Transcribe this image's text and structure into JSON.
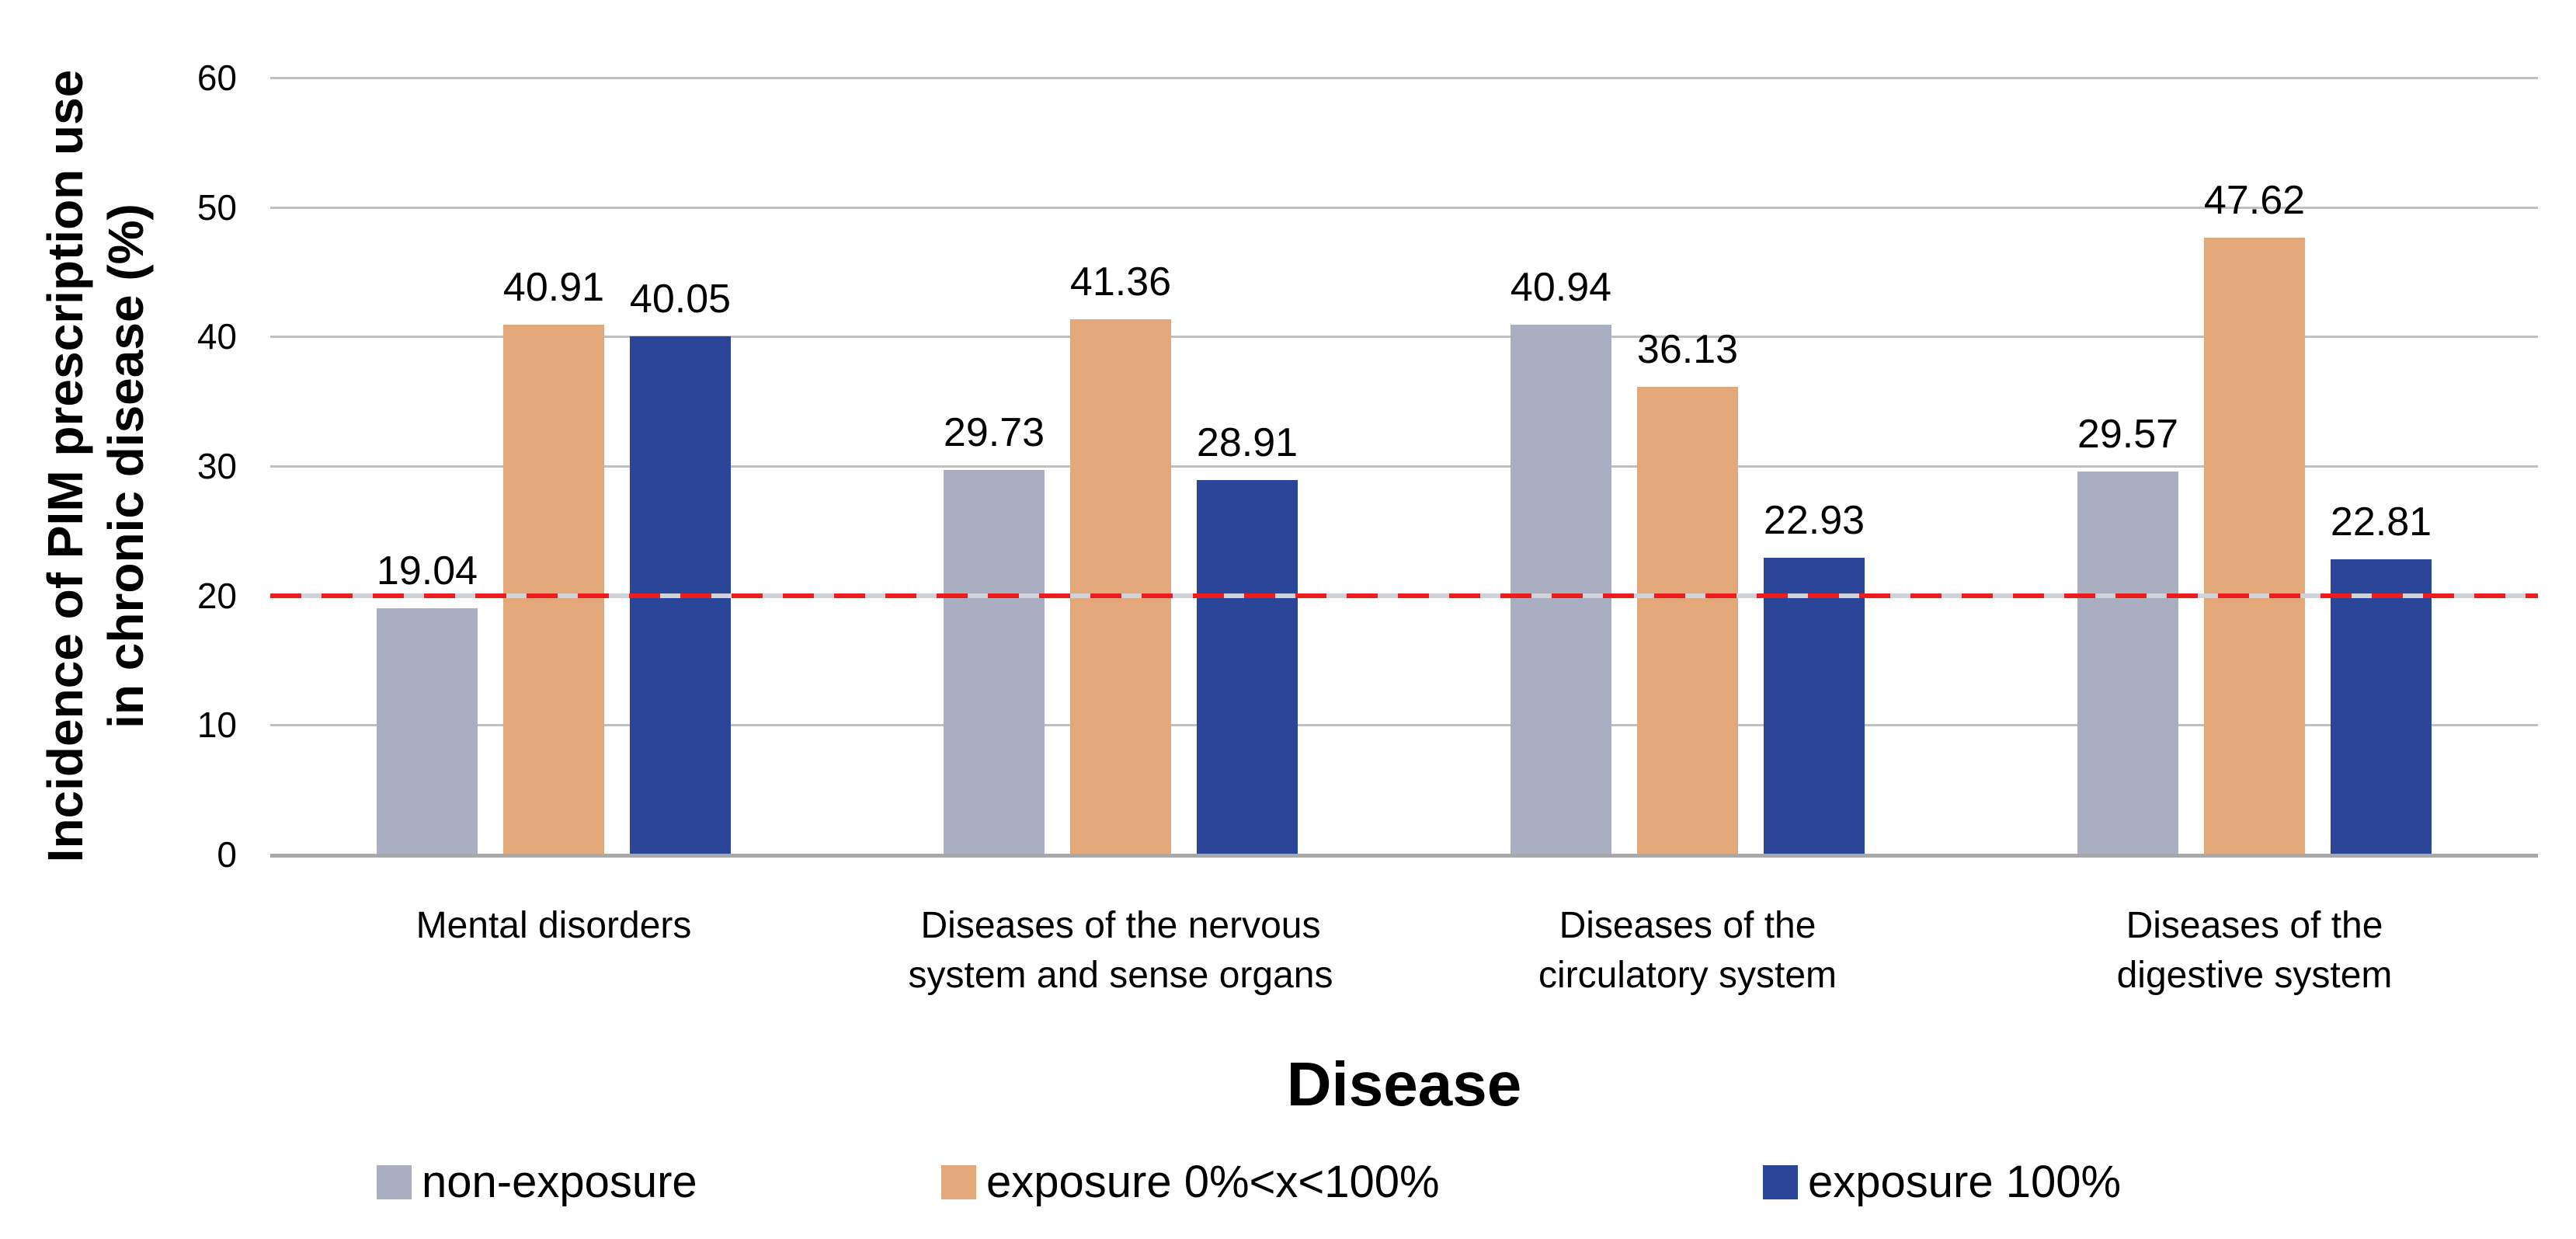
{
  "chart_data": {
    "type": "bar",
    "title": "",
    "xlabel": "Disease",
    "ylabel": "Incidence of PIM prescription use in chronic disease (%)",
    "ylabel_lines": [
      "Incidence of PIM prescription use",
      "in chronic disease (%)"
    ],
    "ylim": [
      0,
      60
    ],
    "yticks": [
      0,
      10,
      20,
      30,
      40,
      50,
      60
    ],
    "grid": "horizontal",
    "legend_position": "bottom",
    "categories": [
      "Mental disorders",
      "Diseases of the nervous system and sense organs",
      "Diseases of the circulatory system",
      "Diseases of the digestive system"
    ],
    "categories_lines": [
      [
        "Mental disorders"
      ],
      [
        "Diseases of the nervous",
        "system and sense organs"
      ],
      [
        "Diseases of the",
        "circulatory system"
      ],
      [
        "Diseases of the",
        "digestive system"
      ]
    ],
    "series": [
      {
        "name": "non-exposure",
        "color": "#a9aec0",
        "values": [
          19.04,
          29.73,
          40.94,
          29.57
        ]
      },
      {
        "name": "exposure 0%<x<100%",
        "color": "#e3a87a",
        "values": [
          40.91,
          41.36,
          36.13,
          47.62
        ]
      },
      {
        "name": "exposure 100%",
        "color": "#2b4699",
        "values": [
          40.05,
          28.91,
          22.93,
          22.81
        ]
      }
    ],
    "reference_line": {
      "y": 20,
      "color": "#ee1c1c",
      "style": "dashed"
    },
    "colors": {
      "gridline": "#c0c0c0",
      "baseline": "#a8a8a8",
      "text": "#000000",
      "background": "#ffffff"
    }
  }
}
